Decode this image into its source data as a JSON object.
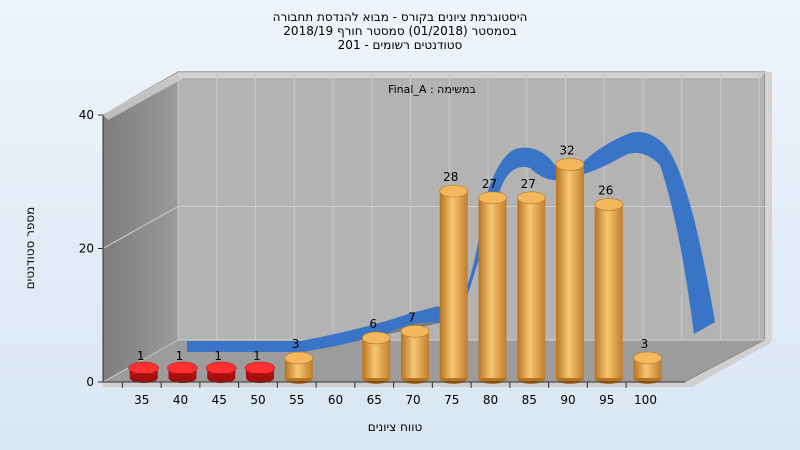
{
  "chart_data": {
    "type": "bar",
    "title_lines": [
      "היסטוגרמת ציונים בקורס - מבוא להנדסת תחבורה",
      "בסמסטר  (01/2018)  סמסטר חורף 2018/19",
      "סטודנטים רשומים - 201"
    ],
    "series_name": "Final_A : במשימה",
    "xlabel": "טווח ציונים",
    "ylabel": "מספר סטודנטים",
    "categories": [
      "35",
      "40",
      "45",
      "50",
      "55",
      "60",
      "65",
      "70",
      "75",
      "80",
      "85",
      "90",
      "95",
      "100"
    ],
    "values": [
      1,
      1,
      1,
      1,
      3,
      0,
      6,
      7,
      28,
      27,
      27,
      32,
      26,
      3
    ],
    "value_labels": [
      "1",
      "1",
      "1",
      "1",
      "3",
      "",
      "6",
      "7",
      "28",
      "27",
      "27",
      "32",
      "26",
      "3"
    ],
    "ylim": [
      0,
      40
    ],
    "yticks": [
      "0",
      "20",
      "40"
    ],
    "grid": true,
    "colors": {
      "low": "#d81a1a",
      "high": "#e7a447",
      "trend": "#3a74c6",
      "wall_left": "#8c8c8c",
      "wall_back": "#b3b3b3",
      "floor": "#9c9c9c"
    }
  }
}
